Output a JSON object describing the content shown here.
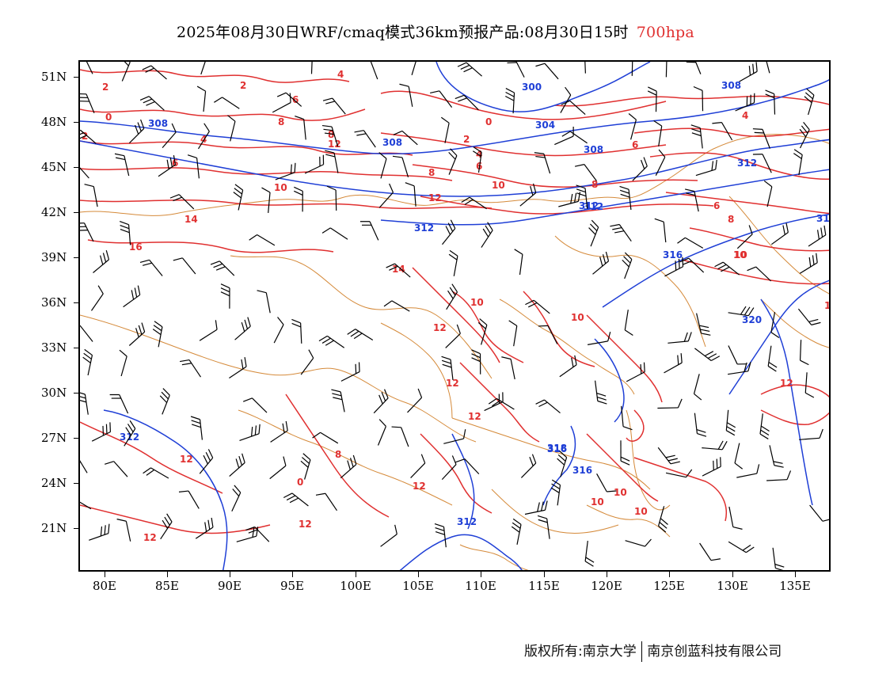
{
  "title": {
    "main": "2025年08月30日WRF/cmaq模式36km预报产品:08月30日15时",
    "level": "700hpa"
  },
  "axes": {
    "lat_labels": [
      "51N",
      "48N",
      "45N",
      "42N",
      "39N",
      "36N",
      "33N",
      "30N",
      "27N",
      "24N",
      "21N"
    ],
    "lon_labels": [
      "80E",
      "85E",
      "90E",
      "95E",
      "100E",
      "105E",
      "110E",
      "115E",
      "120E",
      "125E",
      "130E",
      "135E"
    ]
  },
  "colors": {
    "height_contour": "#1f3fd6",
    "temperature_contour": "#e03030",
    "border": "#d58a3a",
    "wind_barb": "#000000"
  },
  "geopotential_height_labels": [
    "300",
    "304",
    "308",
    "308",
    "308",
    "308",
    "312",
    "312",
    "312",
    "312",
    "316",
    "316",
    "316",
    "318",
    "320",
    "312",
    "312",
    "31"
  ],
  "temperature_labels": [
    "2",
    "0",
    "2",
    "4",
    "6",
    "8",
    "4",
    "6",
    "8",
    "10",
    "14",
    "16",
    "12",
    "2",
    "0",
    "2",
    "4",
    "6",
    "8",
    "10",
    "12",
    "8",
    "6",
    "8",
    "10",
    "6",
    "4",
    "14",
    "10",
    "10",
    "12",
    "12",
    "12",
    "12",
    "10",
    "10",
    "10",
    "12",
    "12",
    "12",
    "12",
    "10",
    "0",
    "8",
    "12"
  ],
  "credits": {
    "left": "版权所有:南京大学",
    "right": "南京创蓝科技有限公司"
  }
}
